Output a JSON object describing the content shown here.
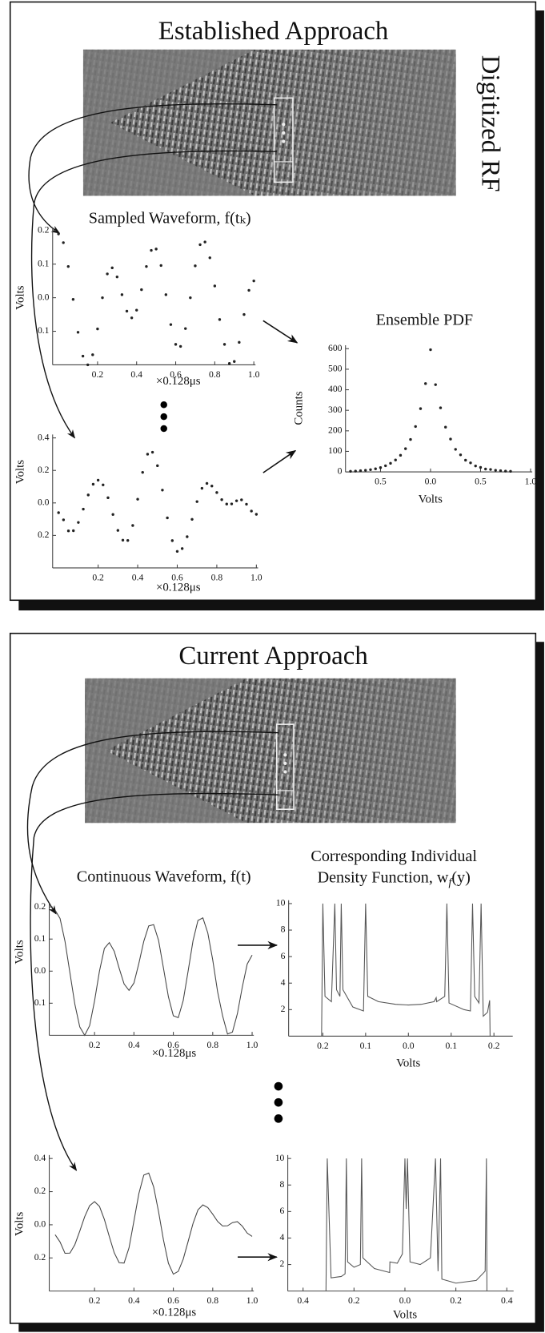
{
  "panels": [
    {
      "title": "Established Approach",
      "side_label": "Digitized RF"
    },
    {
      "title": "Current Approach"
    }
  ],
  "chart_data": [
    {
      "type": "scatter",
      "title": "Sampled Waveform, f(tₖ)",
      "xlabel": "×0.128μs",
      "ylabel": "Volts",
      "color": "#222222",
      "x": [
        0,
        0.025,
        0.05,
        0.075,
        0.1,
        0.125,
        0.15,
        0.175,
        0.2,
        0.225,
        0.25,
        0.275,
        0.3,
        0.325,
        0.35,
        0.375,
        0.4,
        0.425,
        0.45,
        0.475,
        0.5,
        0.525,
        0.55,
        0.575,
        0.6,
        0.625,
        0.65,
        0.675,
        0.7,
        0.725,
        0.75,
        0.775,
        0.8,
        0.825,
        0.85,
        0.875,
        0.9,
        0.925,
        0.95,
        0.975,
        1
      ],
      "values": [
        0.19,
        0.164,
        0.093,
        -0.005,
        -0.103,
        -0.174,
        -0.2,
        -0.17,
        -0.093,
        0,
        0.071,
        0.089,
        0.062,
        0.009,
        -0.04,
        -0.06,
        -0.037,
        0.024,
        0.093,
        0.141,
        0.145,
        0.096,
        0.009,
        -0.08,
        -0.139,
        -0.145,
        -0.092,
        0,
        0.095,
        0.158,
        0.166,
        0.119,
        0.035,
        -0.065,
        -0.139,
        -0.196,
        -0.19,
        -0.133,
        -0.05,
        0.022,
        0.05
      ],
      "xlim": [
        -0.03,
        1
      ],
      "ylim": [
        -0.2,
        0.2
      ],
      "xticks": [
        0.2,
        0.4,
        0.6,
        0.8,
        {
          "value": 1,
          "label": "1.0"
        }
      ],
      "yticks": [
        {
          "value": -0.1,
          "label": "0.1"
        },
        {
          "value": 0,
          "label": "0.0"
        },
        0.1,
        0.2
      ]
    },
    {
      "type": "scatter",
      "xlabel": "×0.128μs",
      "ylabel": "Volts",
      "color": "#222222",
      "x": [
        0,
        0.025,
        0.05,
        0.075,
        0.1,
        0.125,
        0.15,
        0.175,
        0.2,
        0.225,
        0.25,
        0.275,
        0.3,
        0.325,
        0.35,
        0.375,
        0.4,
        0.425,
        0.45,
        0.475,
        0.5,
        0.525,
        0.55,
        0.575,
        0.6,
        0.625,
        0.65,
        0.675,
        0.7,
        0.725,
        0.75,
        0.775,
        0.8,
        0.825,
        0.85,
        0.875,
        0.9,
        0.925,
        0.95,
        0.975,
        1
      ],
      "values": [
        -0.06,
        -0.104,
        -0.172,
        -0.171,
        -0.12,
        -0.038,
        0.049,
        0.115,
        0.14,
        0.111,
        0.032,
        -0.071,
        -0.169,
        -0.229,
        -0.231,
        -0.139,
        0.023,
        0.188,
        0.3,
        0.312,
        0.229,
        0.079,
        -0.092,
        -0.232,
        -0.298,
        -0.281,
        -0.208,
        -0.101,
        0.008,
        0.09,
        0.12,
        0.104,
        0.064,
        0.02,
        -0.007,
        -0.006,
        0.013,
        0.019,
        -0.008,
        -0.05,
        -0.07
      ],
      "xlim": [
        -0.03,
        1
      ],
      "ylim": [
        -0.4,
        0.4
      ],
      "xticks": [
        0.2,
        0.4,
        0.6,
        0.8,
        {
          "value": 1,
          "label": "1.0"
        }
      ],
      "yticks": [
        {
          "value": -0.2,
          "label": "0.2"
        },
        {
          "value": 0,
          "label": "0.0"
        },
        0.2,
        0.4
      ]
    },
    {
      "type": "line",
      "title": "Continuous Waveform, f(t)",
      "xlabel": "×0.128μs",
      "ylabel": "Volts",
      "color": "#444444",
      "x": [
        0,
        0.025,
        0.05,
        0.075,
        0.1,
        0.125,
        0.15,
        0.175,
        0.2,
        0.225,
        0.25,
        0.275,
        0.3,
        0.325,
        0.35,
        0.375,
        0.4,
        0.425,
        0.45,
        0.475,
        0.5,
        0.525,
        0.55,
        0.575,
        0.6,
        0.625,
        0.65,
        0.675,
        0.7,
        0.725,
        0.75,
        0.775,
        0.8,
        0.825,
        0.85,
        0.875,
        0.9,
        0.925,
        0.95,
        0.975,
        1
      ],
      "values": [
        0.19,
        0.164,
        0.093,
        -0.005,
        -0.103,
        -0.174,
        -0.2,
        -0.17,
        -0.093,
        0,
        0.071,
        0.089,
        0.062,
        0.009,
        -0.04,
        -0.06,
        -0.037,
        0.024,
        0.093,
        0.141,
        0.145,
        0.096,
        0.009,
        -0.08,
        -0.139,
        -0.145,
        -0.092,
        0,
        0.095,
        0.158,
        0.166,
        0.119,
        0.035,
        -0.065,
        -0.139,
        -0.196,
        -0.19,
        -0.133,
        -0.05,
        0.022,
        0.05
      ],
      "xlim": [
        -0.03,
        1
      ],
      "ylim": [
        -0.2,
        0.2
      ],
      "xticks": [
        0.2,
        0.4,
        0.6,
        0.8,
        {
          "value": 1,
          "label": "1.0"
        }
      ],
      "yticks": [
        {
          "value": -0.1,
          "label": "0.1"
        },
        {
          "value": 0,
          "label": "0.0"
        },
        0.1,
        0.2
      ]
    },
    {
      "type": "line",
      "xlabel": "×0.128μs",
      "ylabel": "Volts",
      "color": "#444444",
      "x": [
        0,
        0.025,
        0.05,
        0.075,
        0.1,
        0.125,
        0.15,
        0.175,
        0.2,
        0.225,
        0.25,
        0.275,
        0.3,
        0.325,
        0.35,
        0.375,
        0.4,
        0.425,
        0.45,
        0.475,
        0.5,
        0.525,
        0.55,
        0.575,
        0.6,
        0.625,
        0.65,
        0.675,
        0.7,
        0.725,
        0.75,
        0.775,
        0.8,
        0.825,
        0.85,
        0.875,
        0.9,
        0.925,
        0.95,
        0.975,
        1
      ],
      "values": [
        -0.06,
        -0.104,
        -0.172,
        -0.171,
        -0.12,
        -0.038,
        0.049,
        0.115,
        0.14,
        0.111,
        0.032,
        -0.071,
        -0.169,
        -0.229,
        -0.231,
        -0.139,
        0.023,
        0.188,
        0.3,
        0.312,
        0.229,
        0.079,
        -0.092,
        -0.232,
        -0.298,
        -0.281,
        -0.208,
        -0.101,
        0.008,
        0.09,
        0.12,
        0.104,
        0.064,
        0.02,
        -0.007,
        -0.006,
        0.013,
        0.019,
        -0.008,
        -0.05,
        -0.07
      ],
      "xlim": [
        -0.03,
        1
      ],
      "ylim": [
        -0.4,
        0.4
      ],
      "xticks": [
        0.2,
        0.4,
        0.6,
        0.8,
        {
          "value": 1,
          "label": "1.0"
        }
      ],
      "yticks": [
        {
          "value": -0.2,
          "label": "0.2"
        },
        {
          "value": 0,
          "label": "0.0"
        },
        0.2,
        0.4
      ]
    },
    {
      "type": "scatter",
      "title": "Ensemble PDF",
      "xlabel": "Volts",
      "ylabel": "Counts",
      "color": "#222222",
      "x": [
        -0.8,
        -0.75,
        -0.7,
        -0.65,
        -0.6,
        -0.55,
        -0.5,
        -0.45,
        -0.4,
        -0.35,
        -0.3,
        -0.25,
        -0.2,
        -0.15,
        -0.1,
        -0.05,
        0,
        0.05,
        0.1,
        0.15,
        0.2,
        0.25,
        0.3,
        0.35,
        0.4,
        0.45,
        0.5,
        0.55,
        0.6,
        0.65,
        0.7,
        0.75,
        0.8
      ],
      "values": [
        3,
        4,
        6,
        8,
        11,
        15,
        21,
        30,
        42,
        58,
        81,
        113,
        158,
        221,
        308,
        430,
        595,
        425,
        312,
        218,
        160,
        110,
        83,
        57,
        44,
        29,
        22,
        14,
        12,
        8,
        6,
        4,
        3
      ],
      "xlim": [
        -0.85,
        1
      ],
      "ylim": [
        0,
        600
      ],
      "xticks": [
        {
          "value": -0.5,
          "label": "0.5"
        },
        {
          "value": 0,
          "label": "0.0"
        },
        0.5,
        {
          "value": 1,
          "label": "1.0"
        }
      ],
      "yticks": [
        0,
        100,
        200,
        300,
        400,
        500,
        600
      ]
    },
    {
      "type": "line",
      "title": "Corresponding Individual",
      "subtitle": "Density Function, w",
      "title_subscript": "f",
      "title_suffix": "(y)",
      "xlabel": "Volts",
      "color": "#555555",
      "x": [
        -0.203,
        -0.2,
        -0.195,
        -0.18,
        -0.172,
        -0.168,
        -0.16,
        -0.157,
        -0.153,
        -0.13,
        -0.105,
        -0.1,
        -0.095,
        -0.07,
        -0.03,
        0,
        0.03,
        0.06,
        0.065,
        0.066,
        0.085,
        0.09,
        0.095,
        0.13,
        0.145,
        0.15,
        0.155,
        0.165,
        0.17,
        0.175,
        0.185,
        0.19,
        0.191
      ],
      "values": [
        0,
        10,
        3,
        2.6,
        10,
        3.5,
        3,
        10,
        3.5,
        2.2,
        1.9,
        10,
        3,
        2.6,
        2.4,
        2.35,
        2.4,
        2.6,
        2.9,
        2.6,
        3,
        10,
        2.5,
        2,
        1.9,
        10,
        3,
        2.5,
        10,
        1.5,
        1.8,
        2.7,
        0
      ],
      "xlim": [
        -0.28,
        0.24
      ],
      "ylim": [
        0,
        10
      ],
      "xticks": [
        {
          "value": -0.2,
          "label": "0.2"
        },
        {
          "value": -0.1,
          "label": "0.1"
        },
        {
          "value": 0,
          "label": "0.0"
        },
        0.1,
        0.2
      ],
      "yticks": [
        2,
        4,
        6,
        8,
        10
      ]
    },
    {
      "type": "line",
      "xlabel": "Volts",
      "color": "#555555",
      "x": [
        -0.31,
        -0.305,
        -0.29,
        -0.25,
        -0.235,
        -0.23,
        -0.225,
        -0.2,
        -0.175,
        -0.17,
        -0.165,
        -0.12,
        -0.08,
        -0.06,
        -0.059,
        -0.03,
        -0.01,
        0,
        0.005,
        0.01,
        0.02,
        0.06,
        0.1,
        0.12,
        0.13,
        0.14,
        0.145,
        0.2,
        0.28,
        0.315,
        0.32,
        0.322
      ],
      "values": [
        0,
        10,
        1,
        1.1,
        1.3,
        10,
        2.2,
        1.8,
        2,
        10,
        2.5,
        1.7,
        1.5,
        1.4,
        2.2,
        2.1,
        2.8,
        10,
        6.2,
        10,
        2.2,
        2,
        2.5,
        10,
        1.5,
        10,
        0.9,
        0.6,
        0.8,
        1.5,
        10,
        0
      ],
      "xlim": [
        -0.46,
        0.42
      ],
      "ylim": [
        0,
        10
      ],
      "xticks": [
        {
          "value": -0.4,
          "label": "0.4"
        },
        {
          "value": -0.2,
          "label": "0.2"
        },
        {
          "value": 0,
          "label": "0.0"
        },
        0.2,
        0.4
      ],
      "yticks": [
        2,
        4,
        6,
        8,
        10
      ]
    }
  ]
}
